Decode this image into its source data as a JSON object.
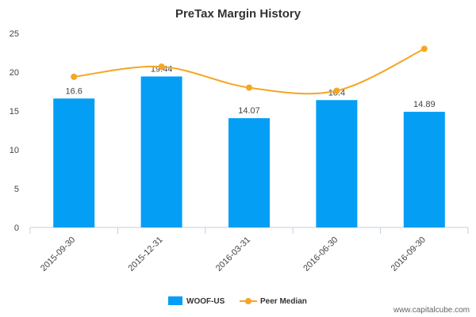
{
  "chart_data": {
    "type": "bar",
    "title": "PreTax Margin History",
    "xlabel": "",
    "ylabel": "",
    "categories": [
      "2015-09-30",
      "2015-12-31",
      "2016-03-31",
      "2016-06-30",
      "2016-09-30"
    ],
    "ylim": [
      0,
      25
    ],
    "yticks": [
      0,
      5,
      10,
      15,
      20,
      25
    ],
    "grid": false,
    "legend_position": "bottom",
    "series": [
      {
        "name": "WOOF-US",
        "type": "bar",
        "color": "#049ef5",
        "values": [
          16.6,
          19.44,
          14.07,
          16.4,
          14.89
        ],
        "labels": [
          "16.6",
          "19.44",
          "14.07",
          "16.4",
          "14.89"
        ]
      },
      {
        "name": "Peer Median",
        "type": "line",
        "color": "#f5a623",
        "values": [
          19.4,
          20.7,
          18.0,
          17.6,
          23.0
        ]
      }
    ],
    "credit": "www.capitalcube.com"
  }
}
